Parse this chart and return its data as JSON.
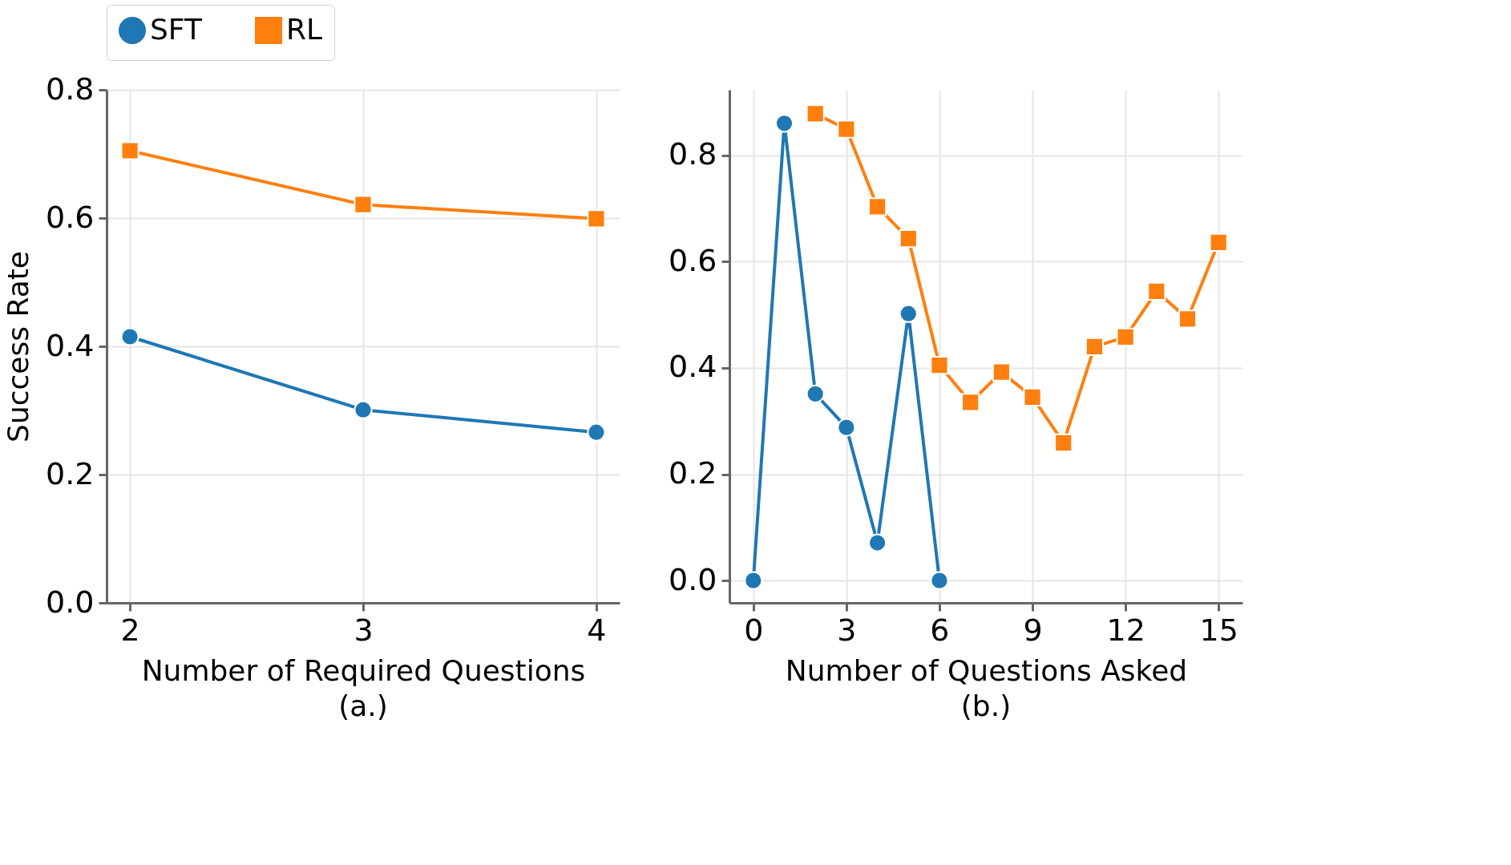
{
  "chart_data": [
    {
      "type": "line",
      "xlabel": "Number of Required Questions",
      "ylabel": "Success Rate",
      "annotations": [
        "(a.)"
      ],
      "x": [
        2,
        3,
        4
      ],
      "xlim": [
        1.9,
        4.1
      ],
      "xticks": [
        2,
        3,
        4
      ],
      "ylim": [
        0,
        0.8
      ],
      "yticks": [
        {
          "value": 0,
          "label": "0.0"
        },
        0.2,
        0.4,
        0.6,
        0.8
      ],
      "grid": true,
      "legend": "top",
      "series": [
        {
          "name": "SFT",
          "color": "#1f77b4",
          "marker": "circle",
          "values": [
            0.415,
            0.301,
            0.266
          ]
        },
        {
          "name": "RL",
          "color": "#ff7f0e",
          "marker": "square",
          "values": [
            0.705,
            0.621,
            0.599
          ]
        }
      ]
    },
    {
      "type": "line",
      "xlabel": "Number of Questions Asked",
      "annotations": [
        "(b.)"
      ],
      "xlim": [
        -0.77,
        15.77
      ],
      "xticks": [
        0,
        3,
        6,
        9,
        12,
        15
      ],
      "ylim": [
        -0.042,
        0.923
      ],
      "yticks": [
        {
          "value": 0,
          "label": "0.0"
        },
        0.2,
        0.4,
        0.6,
        0.8
      ],
      "grid": true,
      "series": [
        {
          "name": "SFT",
          "color": "#1f77b4",
          "marker": "circle",
          "x": [
            0,
            1,
            2,
            3,
            4,
            5,
            6
          ],
          "values": [
            0.0,
            0.86,
            0.351,
            0.288,
            0.071,
            0.502,
            0.0
          ]
        },
        {
          "name": "RL",
          "color": "#ff7f0e",
          "marker": "square",
          "x": [
            2,
            3,
            4,
            5,
            6,
            7,
            8,
            9,
            10,
            11,
            12,
            13,
            14,
            15
          ],
          "values": [
            0.878,
            0.849,
            0.703,
            0.643,
            0.405,
            0.335,
            0.392,
            0.345,
            0.259,
            0.44,
            0.458,
            0.544,
            0.492,
            0.636
          ]
        }
      ]
    }
  ]
}
